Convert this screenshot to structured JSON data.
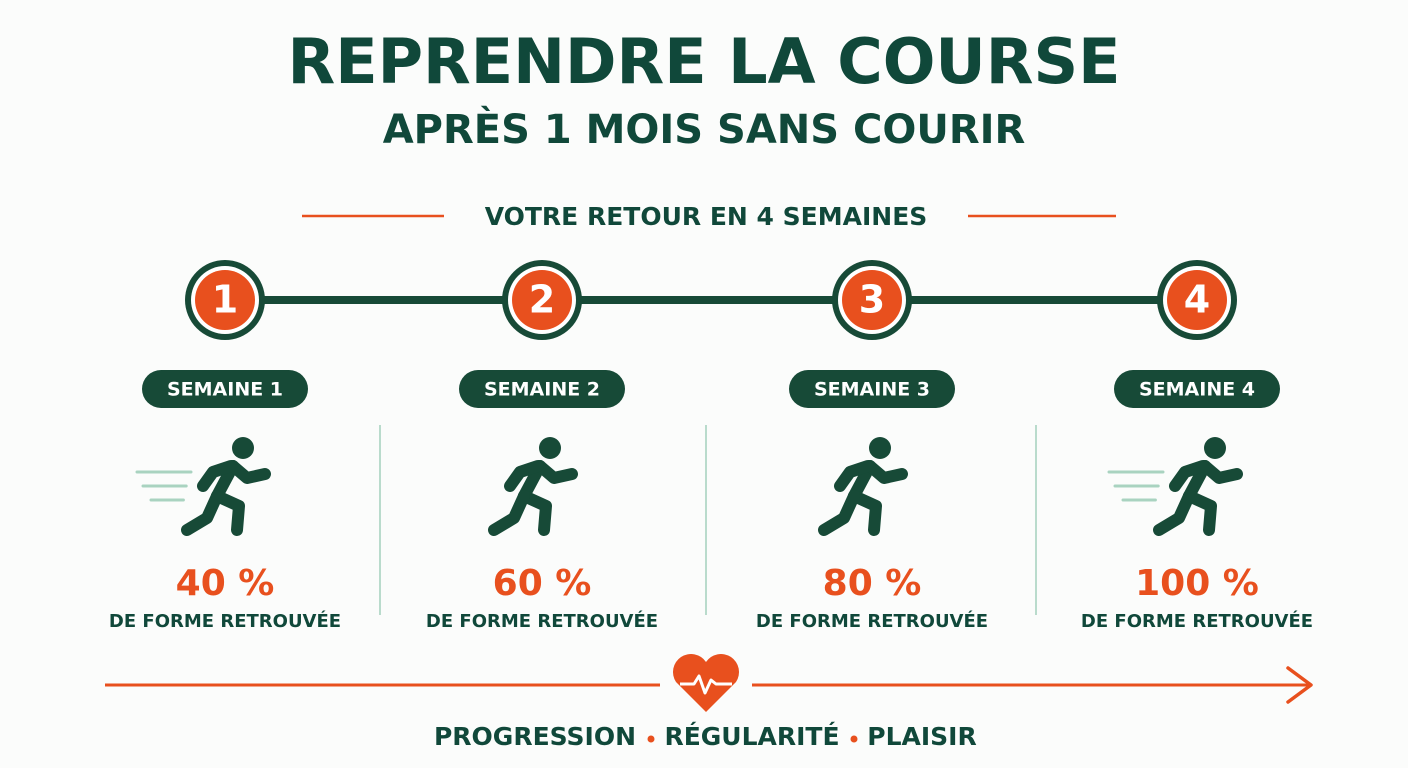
{
  "header": {
    "title": "REPRENDRE LA COURSE",
    "subtitle": "APRÈS 1 MOIS SANS COURIR"
  },
  "section_title": "VOTRE RETOUR EN 4 SEMAINES",
  "steps": [
    {
      "number": "1",
      "label": "SEMAINE 1",
      "percent": "40 %",
      "caption": "DE FORME RETROUVÉE"
    },
    {
      "number": "2",
      "label": "SEMAINE 2",
      "percent": "60 %",
      "caption": "DE FORME RETROUVÉE"
    },
    {
      "number": "3",
      "label": "SEMAINE 3",
      "percent": "80 %",
      "caption": "DE FORME RETROUVÉE"
    },
    {
      "number": "4",
      "label": "SEMAINE 4",
      "percent": "100 %",
      "caption": "DE FORME RETROUVÉE"
    }
  ],
  "footer": {
    "words": [
      "PROGRESSION",
      "RÉGULARITÉ",
      "PLAISIR"
    ]
  }
}
